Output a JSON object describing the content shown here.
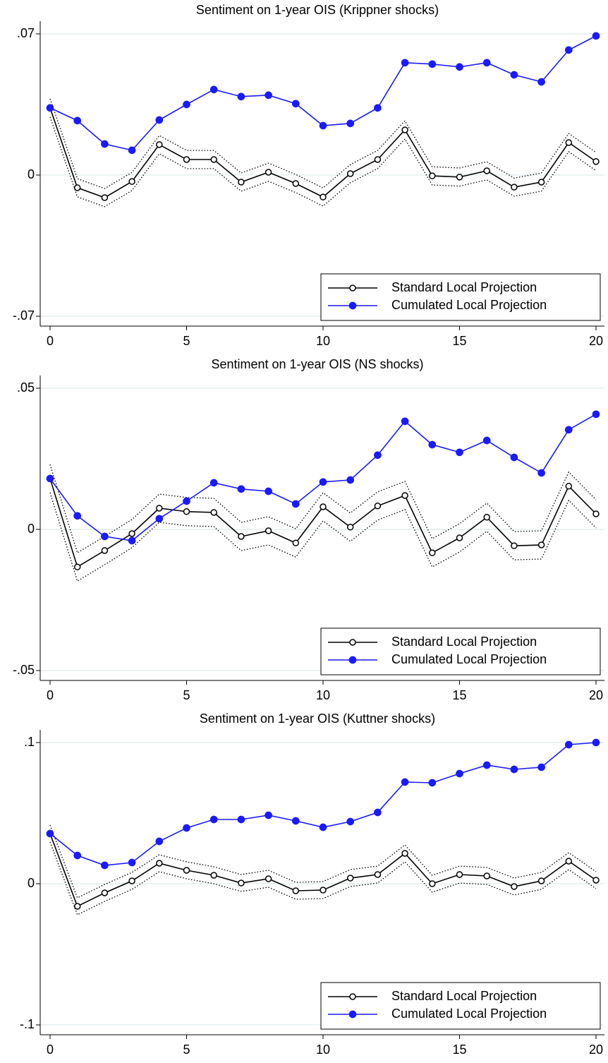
{
  "chart_data": [
    {
      "type": "line",
      "title": "Sentiment on 1-year OIS (Krippner shocks)",
      "x": [
        0,
        1,
        2,
        3,
        4,
        5,
        6,
        7,
        8,
        9,
        10,
        11,
        12,
        13,
        14,
        15,
        16,
        17,
        18,
        19,
        20
      ],
      "series": [
        {
          "name": "Standard Local Projection",
          "color": "#000000",
          "marker": "hollow",
          "values": [
            0.0333,
            -0.0063,
            -0.0112,
            -0.0032,
            0.0151,
            0.0077,
            0.0077,
            -0.0035,
            0.0014,
            -0.0042,
            -0.0109,
            0.0007,
            0.0077,
            0.0224,
            -0.0004,
            -0.001,
            0.0021,
            -0.006,
            -0.0035,
            0.0161,
            0.0067
          ]
        },
        {
          "name": "Cumulated Local Projection",
          "color": "#1a1aff",
          "marker": "filled",
          "values": [
            0.0333,
            0.027,
            0.0154,
            0.0123,
            0.0273,
            0.035,
            0.0424,
            0.0389,
            0.0396,
            0.0354,
            0.0245,
            0.0256,
            0.0333,
            0.0557,
            0.055,
            0.0536,
            0.0557,
            0.0497,
            0.0462,
            0.062,
            0.069
          ]
        }
      ],
      "ci": {
        "color": "#000000",
        "upper": [
          0.0378,
          -0.0018,
          -0.0067,
          0.0013,
          0.0196,
          0.0122,
          0.0122,
          0.001,
          0.0059,
          0.0003,
          -0.0064,
          0.0052,
          0.0122,
          0.0269,
          0.0041,
          0.0035,
          0.0066,
          -0.0015,
          0.001,
          0.0206,
          0.0112
        ],
        "lower": [
          0.0288,
          -0.0108,
          -0.0157,
          -0.0077,
          0.0106,
          0.0032,
          0.0032,
          -0.008,
          -0.0031,
          -0.0087,
          -0.0154,
          -0.0038,
          0.0032,
          0.0179,
          -0.0049,
          -0.0055,
          -0.0024,
          -0.0105,
          -0.008,
          0.0116,
          0.0022
        ]
      },
      "xlim": [
        0,
        20
      ],
      "xticks": [
        0,
        5,
        10,
        15,
        20
      ],
      "ylim": [
        -0.07,
        0.07
      ],
      "yticks": [
        {
          "value": -0.07,
          "label": "-.07"
        },
        0,
        {
          "value": 0.07,
          "label": ".07"
        }
      ],
      "grid": true,
      "legend": "lower-right"
    },
    {
      "type": "line",
      "title": "Sentiment on 1-year OIS (NS shocks)",
      "x": [
        0,
        1,
        2,
        3,
        4,
        5,
        6,
        7,
        8,
        9,
        10,
        11,
        12,
        13,
        14,
        15,
        16,
        17,
        18,
        19,
        20
      ],
      "series": [
        {
          "name": "Standard Local Projection",
          "color": "#000000",
          "marker": "hollow",
          "values": [
            0.018,
            -0.0133,
            -0.0075,
            -0.0015,
            0.0075,
            0.0063,
            0.006,
            -0.0025,
            -0.0005,
            -0.0048,
            0.008,
            0.0008,
            0.0083,
            0.012,
            -0.0083,
            -0.003,
            0.0043,
            -0.0058,
            -0.0055,
            0.0153,
            0.0055
          ]
        },
        {
          "name": "Cumulated Local Projection",
          "color": "#1a1aff",
          "marker": "filled",
          "values": [
            0.018,
            0.0048,
            -0.0025,
            -0.004,
            0.0038,
            0.01,
            0.0165,
            0.0143,
            0.0135,
            0.009,
            0.0168,
            0.0175,
            0.0263,
            0.0383,
            0.03,
            0.0273,
            0.0315,
            0.0255,
            0.02,
            0.0353,
            0.0408
          ]
        }
      ],
      "ci": {
        "color": "#000000",
        "upper": [
          0.023,
          -0.0083,
          -0.0025,
          0.0035,
          0.0125,
          0.0113,
          0.011,
          0.0025,
          0.0045,
          0.0002,
          0.013,
          0.0058,
          0.0133,
          0.017,
          -0.0033,
          0.002,
          0.0093,
          -0.0008,
          -0.0005,
          0.0203,
          0.0105
        ],
        "lower": [
          0.013,
          -0.0183,
          -0.0125,
          -0.0065,
          0.0025,
          0.0013,
          0.001,
          -0.0075,
          -0.0055,
          -0.0098,
          0.003,
          -0.0042,
          0.0033,
          0.007,
          -0.0133,
          -0.008,
          -0.0007,
          -0.0108,
          -0.0105,
          0.0103,
          0.0005
        ]
      },
      "xlim": [
        0,
        20
      ],
      "xticks": [
        0,
        5,
        10,
        15,
        20
      ],
      "ylim": [
        -0.05,
        0.05
      ],
      "yticks": [
        {
          "value": -0.05,
          "label": "-.05"
        },
        0,
        {
          "value": 0.05,
          "label": ".05"
        }
      ],
      "grid": true,
      "legend": "lower-right"
    },
    {
      "type": "line",
      "title": "Sentiment on 1-year OIS (Kuttner shocks)",
      "x": [
        0,
        1,
        2,
        3,
        4,
        5,
        6,
        7,
        8,
        9,
        10,
        11,
        12,
        13,
        14,
        15,
        16,
        17,
        18,
        19,
        20
      ],
      "series": [
        {
          "name": "Standard Local Projection",
          "color": "#000000",
          "marker": "hollow",
          "values": [
            0.0355,
            -0.016,
            -0.0065,
            0.002,
            0.0145,
            0.0095,
            0.006,
            0.0005,
            0.0035,
            -0.005,
            -0.0045,
            0.004,
            0.0065,
            0.0215,
            0,
            0.0065,
            0.0055,
            -0.002,
            0.002,
            0.016,
            0.0025
          ]
        },
        {
          "name": "Cumulated Local Projection",
          "color": "#1a1aff",
          "marker": "filled",
          "values": [
            0.0355,
            0.02,
            0.013,
            0.015,
            0.03,
            0.0395,
            0.0455,
            0.0455,
            0.0485,
            0.0445,
            0.04,
            0.044,
            0.0505,
            0.072,
            0.0715,
            0.078,
            0.084,
            0.081,
            0.0825,
            0.0985,
            0.1
          ]
        }
      ],
      "ci": {
        "color": "#000000",
        "upper": [
          0.0415,
          -0.01,
          -0.0005,
          0.008,
          0.0205,
          0.0155,
          0.012,
          0.0065,
          0.0095,
          0.001,
          0.0015,
          0.01,
          0.0125,
          0.0275,
          0.006,
          0.0125,
          0.0115,
          0.004,
          0.008,
          0.022,
          0.0085
        ],
        "lower": [
          0.0295,
          -0.022,
          -0.0125,
          -0.004,
          0.0085,
          0.0035,
          0,
          -0.0055,
          -0.0025,
          -0.011,
          -0.0105,
          -0.002,
          0.0005,
          0.0155,
          -0.006,
          0.0005,
          -0.0005,
          -0.008,
          -0.004,
          0.01,
          -0.0035
        ]
      },
      "xlim": [
        0,
        20
      ],
      "xticks": [
        0,
        5,
        10,
        15,
        20
      ],
      "ylim": [
        -0.1,
        0.1
      ],
      "yticks": [
        {
          "value": -0.1,
          "label": "-.1"
        },
        0,
        {
          "value": 0.1,
          "label": ".1"
        }
      ],
      "grid": true,
      "legend": "lower-right"
    }
  ]
}
